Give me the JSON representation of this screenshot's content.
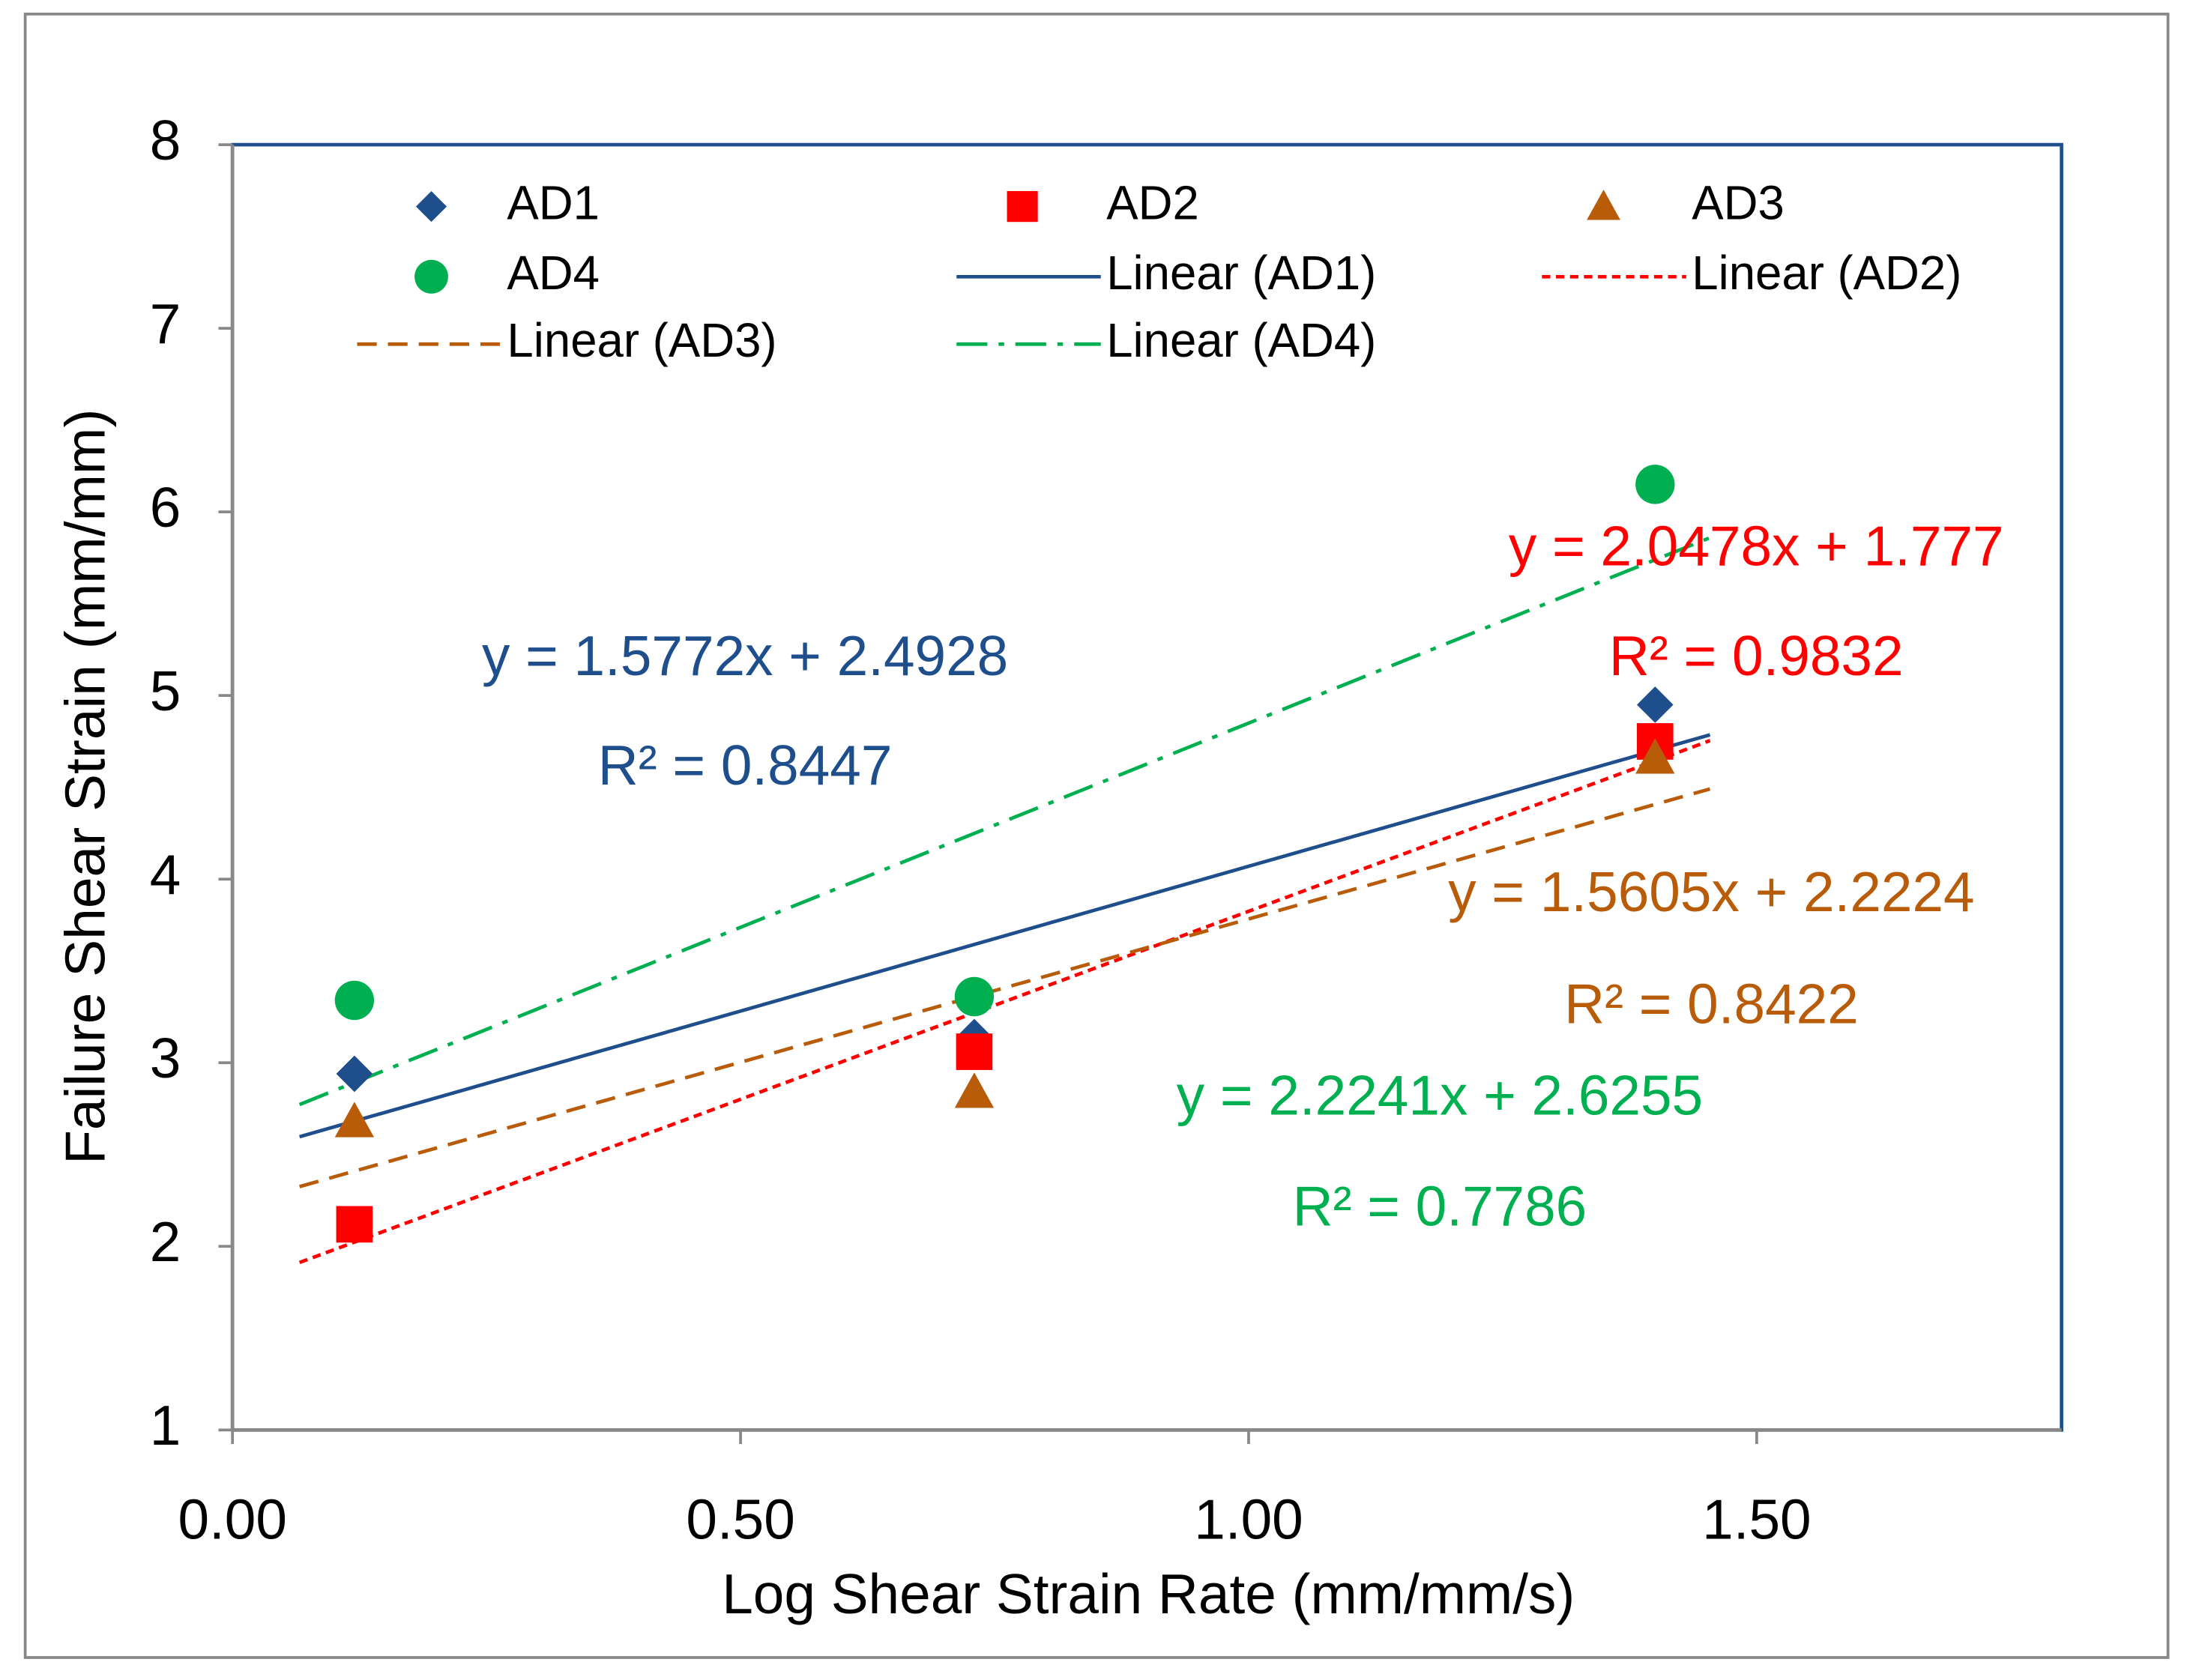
{
  "chart_data": {
    "type": "scatter",
    "x_label": "Log Shear Strain Rate (mm/mm/s)",
    "y_label": "Failure Shear Strain (mm/mm)",
    "x": [
      0.12,
      0.73,
      1.4
    ],
    "xlim": [
      0,
      1.8
    ],
    "xticks": [
      {
        "value": 0,
        "label": "0.00"
      },
      {
        "value": 0.5,
        "label": "0.50"
      },
      {
        "value": 1,
        "label": "1.00"
      },
      {
        "value": 1.5,
        "label": "1.50"
      }
    ],
    "ylim": [
      1,
      8
    ],
    "yticks": [
      1,
      2,
      3,
      4,
      5,
      6,
      7,
      8
    ],
    "grid": false,
    "legend": "top",
    "series": [
      {
        "name": "AD1",
        "color": "#1f4e8c",
        "marker": "diamond",
        "values": [
          2.94,
          3.14,
          4.95
        ],
        "trendline": {
          "name": "Linear (AD1)",
          "dash": "solid",
          "slope": 1.5772,
          "intercept": 2.4928,
          "equation": "y = 1.5772x + 2.4928",
          "r2_label": "R² = 0.8447"
        }
      },
      {
        "name": "AD2",
        "color": "#ff0000",
        "marker": "square",
        "values": [
          2.12,
          3.06,
          4.75
        ],
        "trendline": {
          "name": "Linear (AD2)",
          "dash": "short-dash",
          "slope": 2.0478,
          "intercept": 1.777,
          "equation": "y = 2.0478x + 1.777",
          "r2_label": "R² = 0.9832"
        }
      },
      {
        "name": "AD3",
        "color": "#b85c0a",
        "marker": "triangle",
        "values": [
          2.68,
          2.84,
          4.66
        ],
        "trendline": {
          "name": "Linear (AD3)",
          "dash": "dash",
          "slope": 1.5605,
          "intercept": 2.2224,
          "equation": "y = 1.5605x + 2.2224",
          "r2_label": "R² = 0.8422"
        }
      },
      {
        "name": "AD4",
        "color": "#00b050",
        "marker": "circle",
        "values": [
          3.34,
          3.36,
          6.15
        ],
        "trendline": {
          "name": "Linear (AD4)",
          "dash": "dash-dot",
          "slope": 2.2241,
          "intercept": 2.6255,
          "equation": "y = 2.2241x + 2.6255",
          "r2_label": "R² = 0.7786"
        }
      }
    ]
  }
}
